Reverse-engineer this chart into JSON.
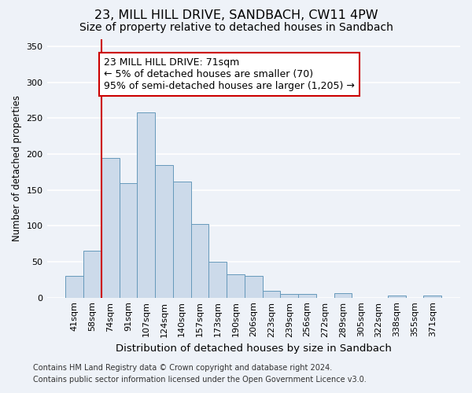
{
  "title": "23, MILL HILL DRIVE, SANDBACH, CW11 4PW",
  "subtitle": "Size of property relative to detached houses in Sandbach",
  "xlabel": "Distribution of detached houses by size in Sandbach",
  "ylabel": "Number of detached properties",
  "categories": [
    "41sqm",
    "58sqm",
    "74sqm",
    "91sqm",
    "107sqm",
    "124sqm",
    "140sqm",
    "157sqm",
    "173sqm",
    "190sqm",
    "206sqm",
    "223sqm",
    "239sqm",
    "256sqm",
    "272sqm",
    "289sqm",
    "305sqm",
    "322sqm",
    "338sqm",
    "355sqm",
    "371sqm"
  ],
  "values": [
    30,
    65,
    195,
    160,
    258,
    185,
    162,
    103,
    50,
    33,
    30,
    10,
    5,
    5,
    0,
    6,
    0,
    0,
    3,
    0,
    3
  ],
  "bar_color": "#ccdaea",
  "bar_edge_color": "#6699bb",
  "annotation_text_line1": "23 MILL HILL DRIVE: 71sqm",
  "annotation_text_line2": "← 5% of detached houses are smaller (70)",
  "annotation_text_line3": "95% of semi-detached houses are larger (1,205) →",
  "annotation_box_facecolor": "#ffffff",
  "annotation_box_edgecolor": "#cc0000",
  "vline_color": "#cc0000",
  "vline_x": 2.0,
  "ylim": [
    0,
    360
  ],
  "yticks": [
    0,
    50,
    100,
    150,
    200,
    250,
    300,
    350
  ],
  "footer_line1": "Contains HM Land Registry data © Crown copyright and database right 2024.",
  "footer_line2": "Contains public sector information licensed under the Open Government Licence v3.0.",
  "background_color": "#eef2f8",
  "grid_color": "#ffffff",
  "title_fontsize": 11.5,
  "subtitle_fontsize": 10,
  "xlabel_fontsize": 9.5,
  "ylabel_fontsize": 8.5,
  "tick_fontsize": 8,
  "footer_fontsize": 7,
  "annot_fontsize": 9
}
